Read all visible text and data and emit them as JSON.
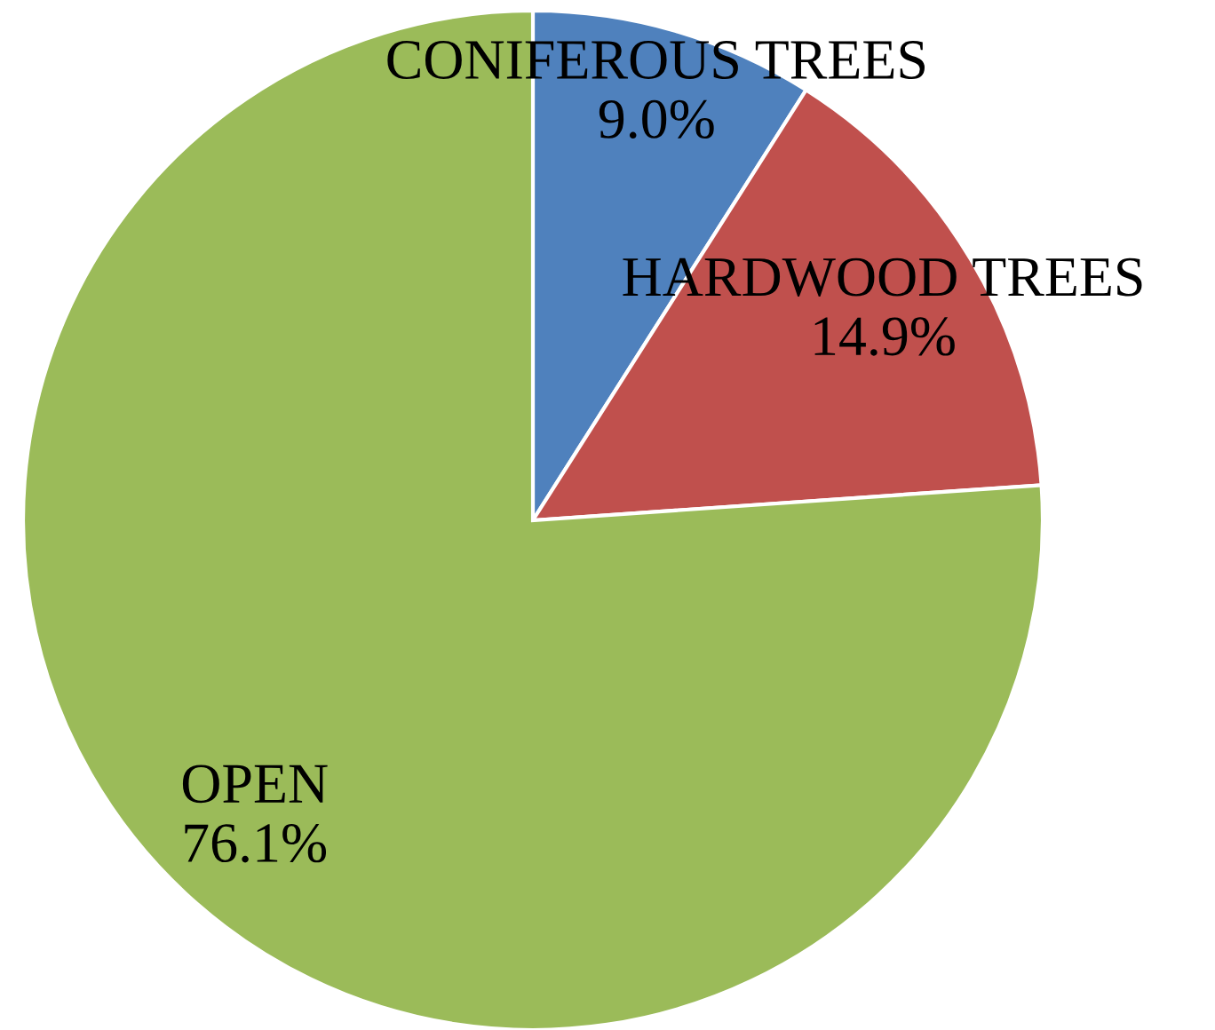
{
  "chart_data": {
    "type": "pie",
    "categories": [
      "CONIFEROUS TREES",
      "HARDWOOD TREES",
      "OPEN"
    ],
    "values": [
      9.0,
      14.9,
      76.1
    ],
    "value_labels": [
      "9.0%",
      "14.9%",
      "76.1%"
    ],
    "colors": [
      "#4f81bd",
      "#c0504d",
      "#9bbb59"
    ],
    "legend": false
  }
}
